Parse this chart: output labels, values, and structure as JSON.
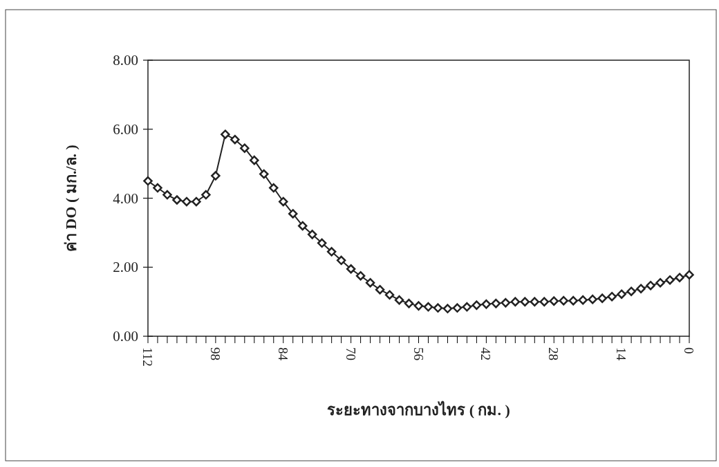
{
  "chart_data": {
    "type": "line",
    "xlabel": "ระยะทางจากบางไทร ( กม. )",
    "ylabel": "ค่า DO ( มก./ล. )",
    "x": [
      112,
      110,
      108,
      106,
      104,
      102,
      100,
      98,
      96,
      94,
      92,
      90,
      88,
      86,
      84,
      82,
      80,
      78,
      76,
      74,
      72,
      70,
      68,
      66,
      64,
      62,
      60,
      58,
      56,
      54,
      52,
      50,
      48,
      46,
      44,
      42,
      40,
      38,
      36,
      34,
      32,
      30,
      28,
      26,
      24,
      22,
      20,
      18,
      16,
      14,
      12,
      10,
      8,
      6,
      4,
      2,
      0
    ],
    "series": [
      {
        "color": "#222222",
        "values": [
          4.5,
          4.3,
          4.1,
          3.95,
          3.9,
          3.9,
          4.1,
          4.65,
          5.85,
          5.7,
          5.45,
          5.1,
          4.7,
          4.3,
          3.9,
          3.55,
          3.2,
          2.95,
          2.7,
          2.45,
          2.2,
          1.95,
          1.75,
          1.55,
          1.35,
          1.2,
          1.05,
          0.95,
          0.88,
          0.85,
          0.82,
          0.8,
          0.82,
          0.85,
          0.9,
          0.93,
          0.95,
          0.97,
          1.0,
          1.0,
          1.0,
          1.0,
          1.02,
          1.03,
          1.03,
          1.05,
          1.07,
          1.1,
          1.15,
          1.22,
          1.3,
          1.38,
          1.47,
          1.55,
          1.63,
          1.7,
          1.78
        ]
      }
    ],
    "xlim": [
      112,
      0
    ],
    "xticks": [
      112,
      {
        "value": 110,
        "label": null
      },
      {
        "value": 108,
        "label": null
      },
      {
        "value": 106,
        "label": null
      },
      {
        "value": 104,
        "label": null
      },
      {
        "value": 102,
        "label": null
      },
      {
        "value": 100,
        "label": null
      },
      98,
      {
        "value": 96,
        "label": null
      },
      {
        "value": 94,
        "label": null
      },
      {
        "value": 92,
        "label": null
      },
      {
        "value": 90,
        "label": null
      },
      {
        "value": 88,
        "label": null
      },
      {
        "value": 86,
        "label": null
      },
      84,
      {
        "value": 82,
        "label": null
      },
      {
        "value": 80,
        "label": null
      },
      {
        "value": 78,
        "label": null
      },
      {
        "value": 76,
        "label": null
      },
      {
        "value": 74,
        "label": null
      },
      {
        "value": 72,
        "label": null
      },
      70,
      {
        "value": 68,
        "label": null
      },
      {
        "value": 66,
        "label": null
      },
      {
        "value": 64,
        "label": null
      },
      {
        "value": 62,
        "label": null
      },
      {
        "value": 60,
        "label": null
      },
      {
        "value": 58,
        "label": null
      },
      56,
      {
        "value": 54,
        "label": null
      },
      {
        "value": 52,
        "label": null
      },
      {
        "value": 50,
        "label": null
      },
      {
        "value": 48,
        "label": null
      },
      {
        "value": 46,
        "label": null
      },
      {
        "value": 44,
        "label": null
      },
      42,
      {
        "value": 40,
        "label": null
      },
      {
        "value": 38,
        "label": null
      },
      {
        "value": 36,
        "label": null
      },
      {
        "value": 34,
        "label": null
      },
      {
        "value": 32,
        "label": null
      },
      {
        "value": 30,
        "label": null
      },
      28,
      {
        "value": 26,
        "label": null
      },
      {
        "value": 24,
        "label": null
      },
      {
        "value": 22,
        "label": null
      },
      {
        "value": 20,
        "label": null
      },
      {
        "value": 18,
        "label": null
      },
      {
        "value": 16,
        "label": null
      },
      14,
      {
        "value": 12,
        "label": null
      },
      {
        "value": 10,
        "label": null
      },
      {
        "value": 8,
        "label": null
      },
      {
        "value": 6,
        "label": null
      },
      {
        "value": 4,
        "label": null
      },
      {
        "value": 2,
        "label": null
      },
      0
    ],
    "ylim": [
      0,
      8
    ],
    "yticks": [
      {
        "value": 0,
        "label": "0.00"
      },
      {
        "value": 2,
        "label": "2.00"
      },
      {
        "value": 4,
        "label": "4.00"
      },
      {
        "value": 6,
        "label": "6.00"
      },
      {
        "value": 8,
        "label": "8.00"
      }
    ],
    "marker": "diamond",
    "line_style": "solid"
  }
}
